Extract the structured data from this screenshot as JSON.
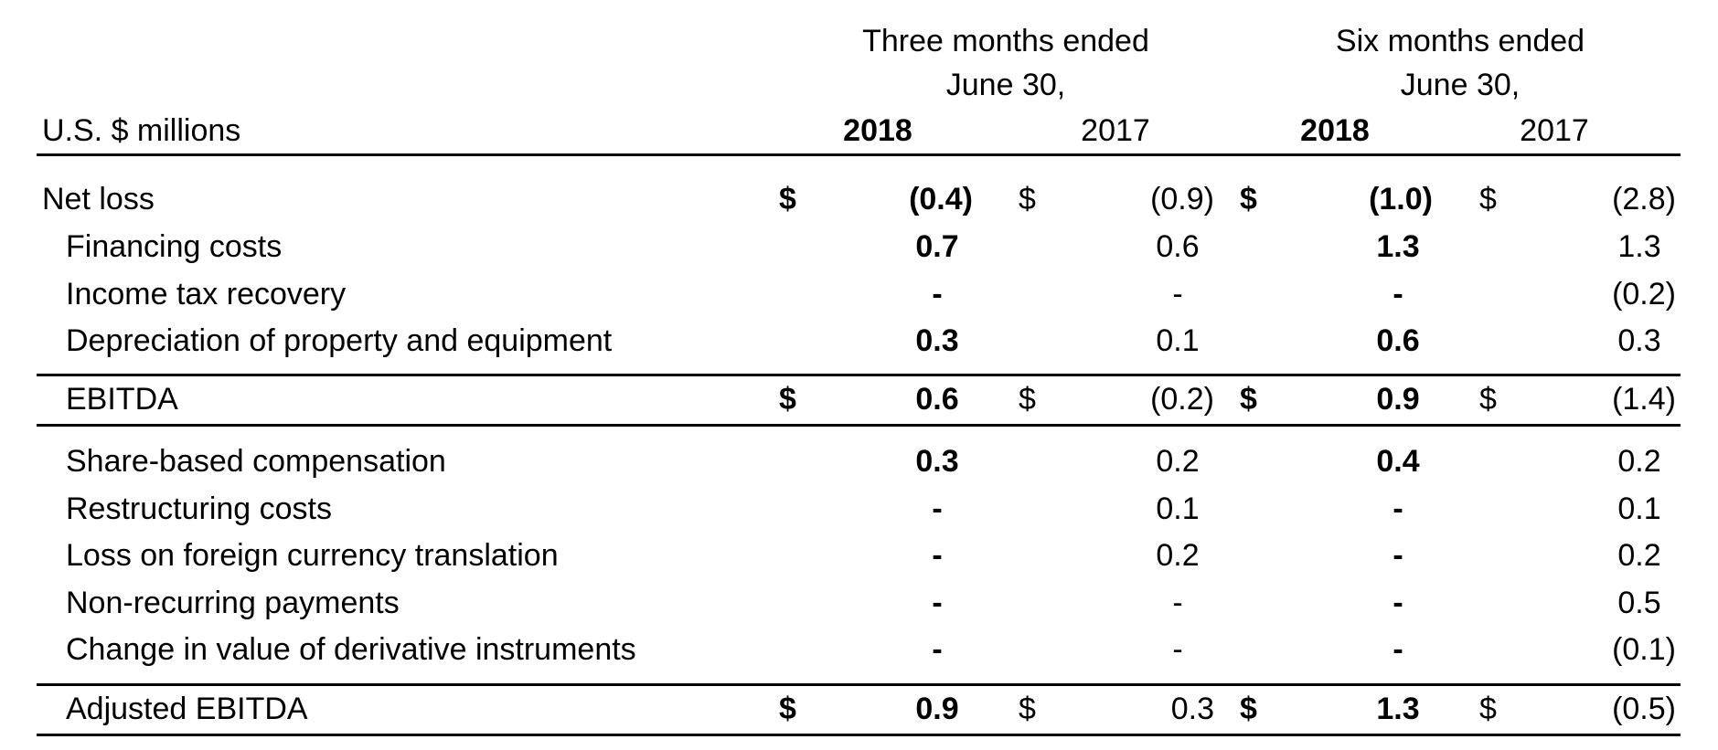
{
  "header": {
    "units": "U.S. $ millions",
    "group1_line1": "Three months ended",
    "group1_line2": "June 30,",
    "group2_line1": "Six months ended",
    "group2_line2": "June 30,",
    "years": [
      "2018",
      "2017",
      "2018",
      "2017"
    ]
  },
  "currency_symbol": "$",
  "rows": [
    {
      "label": "Net loss",
      "v": [
        "(0.4)",
        "(0.9)",
        "(1.0)",
        "(2.8)"
      ]
    },
    {
      "label": "Financing costs",
      "v": [
        "0.7",
        "0.6",
        "1.3",
        "1.3"
      ]
    },
    {
      "label": "Income tax recovery",
      "v": [
        "-",
        "-",
        "-",
        "(0.2)"
      ]
    },
    {
      "label": "Depreciation of property and equipment",
      "v": [
        "0.3",
        "0.1",
        "0.6",
        "0.3"
      ]
    },
    {
      "label": "EBITDA",
      "v": [
        "0.6",
        "(0.2)",
        "0.9",
        "(1.4)"
      ]
    },
    {
      "label": "Share-based compensation",
      "v": [
        "0.3",
        "0.2",
        "0.4",
        "0.2"
      ]
    },
    {
      "label": "Restructuring costs",
      "v": [
        "-",
        "0.1",
        "-",
        "0.1"
      ]
    },
    {
      "label": "Loss on foreign currency translation",
      "v": [
        "-",
        "0.2",
        "-",
        "0.2"
      ]
    },
    {
      "label": "Non-recurring payments",
      "v": [
        "-",
        "-",
        "-",
        "0.5"
      ]
    },
    {
      "label": "Change in value of derivative instruments",
      "v": [
        "-",
        "-",
        "-",
        "(0.1)"
      ]
    },
    {
      "label": "Adjusted EBITDA",
      "v": [
        "0.9",
        "0.3",
        "1.3",
        "(0.5)"
      ]
    }
  ]
}
